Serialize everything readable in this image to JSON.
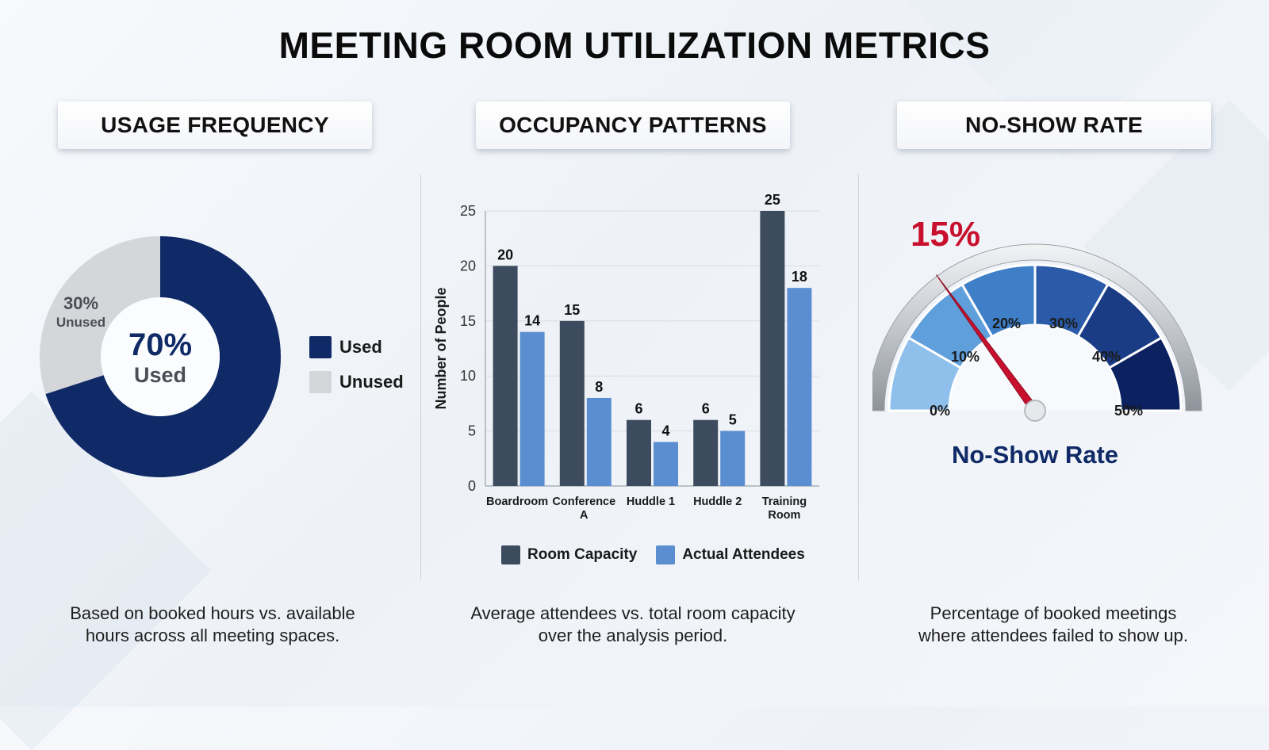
{
  "title": "MEETING ROOM UTILIZATION METRICS",
  "colors": {
    "navy": "#0f2a66",
    "light_gray": "#d4d6da",
    "dark_slate": "#3d4b5e",
    "mid_blue": "#5a8ed0",
    "needle": "#c8102e"
  },
  "panels": {
    "usage": {
      "header": "USAGE FREQUENCY",
      "caption_line1": "Based on booked hours vs. available",
      "caption_line2": "hours across all meeting spaces.",
      "legend": {
        "used": "Used",
        "unused": "Unused"
      }
    },
    "occupancy": {
      "header": "OCCUPANCY PATTERNS",
      "caption_line1": "Average attendees vs. total room capacity",
      "caption_line2": "over the analysis period."
    },
    "noshow": {
      "header": "NO-SHOW RATE",
      "caption_line1": "Percentage of booked meetings",
      "caption_line2": "where attendees failed to show up."
    }
  },
  "chart_data": [
    {
      "type": "pie",
      "style": "donut",
      "slices": [
        {
          "label": "Used",
          "value": 70,
          "pct_label": "70%",
          "sub_label": "Used",
          "color": "#0f2a66"
        },
        {
          "label": "Unused",
          "value": 30,
          "pct_label": "30%",
          "sub_label": "Unused",
          "color": "#d4d6da"
        }
      ],
      "legend_position": "right"
    },
    {
      "type": "bar",
      "categories": [
        [
          "Boardroom"
        ],
        [
          "Conference",
          "A"
        ],
        [
          "Huddle 1"
        ],
        [
          "Huddle 2"
        ],
        [
          "Training",
          "Room"
        ]
      ],
      "series": [
        {
          "name": "Room Capacity",
          "values": [
            20,
            15,
            6,
            6,
            25
          ],
          "color": "#3d4b5e"
        },
        {
          "name": "Actual Attendees",
          "values": [
            14,
            8,
            4,
            5,
            18
          ],
          "color": "#5a8ed0"
        }
      ],
      "ylabel": "Number of People",
      "ylim": [
        0,
        25
      ],
      "yticks": [
        0,
        5,
        10,
        15,
        20,
        25
      ],
      "grid": true,
      "legend_position": "bottom"
    },
    {
      "type": "gauge",
      "value": 15,
      "value_label": "15%",
      "range": [
        0,
        50
      ],
      "ticks": [
        "0%",
        "10%",
        "20%",
        "30%",
        "40%",
        "50%"
      ],
      "band_colors": [
        "#8fc0ec",
        "#5f9fdc",
        "#3e7fc8",
        "#2a5aa8",
        "#1a3c85",
        "#0c2260"
      ],
      "label": "No-Show Rate"
    }
  ]
}
